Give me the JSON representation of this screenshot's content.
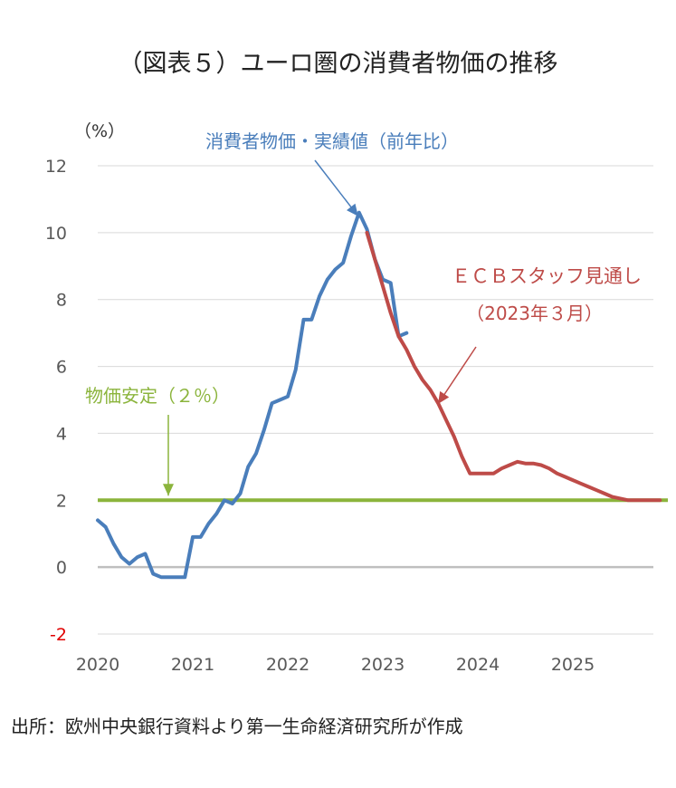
{
  "title": "（図表５）ユーロ圏の消費者物価の推移",
  "source": "出所：欧州中央銀行資料より第一生命経済研究所が作成",
  "colors": {
    "actual": "#4a7ebb",
    "forecast": "#be4b48",
    "target": "#8bb43c",
    "zero": "#bfbfbf",
    "grid": "#d9d9d9",
    "negtick": "#e00000"
  },
  "chart_data": {
    "type": "line",
    "y_unit_label": "（%）",
    "ylim": [
      -2,
      12
    ],
    "y_ticks": [
      "-2",
      "0",
      "2",
      "4",
      "6",
      "8",
      "10",
      "12"
    ],
    "y_tick_values": [
      -2,
      0,
      2,
      4,
      6,
      8,
      10,
      12
    ],
    "x_ticks": [
      "2020",
      "2021",
      "2022",
      "2023",
      "2024",
      "2025"
    ],
    "x_tick_values": [
      2020,
      2021,
      2022,
      2023,
      2024,
      2025
    ],
    "xlim": [
      2020,
      2026
    ],
    "grid": true,
    "series": [
      {
        "name": "消費者物価・実績値（前年比）",
        "x": [
          2020.0,
          2020.083,
          2020.167,
          2020.25,
          2020.333,
          2020.417,
          2020.5,
          2020.583,
          2020.667,
          2020.75,
          2020.833,
          2020.917,
          2021.0,
          2021.083,
          2021.167,
          2021.25,
          2021.333,
          2021.417,
          2021.5,
          2021.583,
          2021.667,
          2021.75,
          2021.833,
          2021.917,
          2022.0,
          2022.083,
          2022.167,
          2022.25,
          2022.333,
          2022.417,
          2022.5,
          2022.583,
          2022.667,
          2022.75,
          2022.833,
          2022.917,
          2023.0,
          2023.083,
          2023.167,
          2023.25
        ],
        "y": [
          1.4,
          1.2,
          0.7,
          0.3,
          0.1,
          0.3,
          0.4,
          -0.2,
          -0.3,
          -0.3,
          -0.3,
          -0.3,
          0.9,
          0.9,
          1.3,
          1.6,
          2.0,
          1.9,
          2.2,
          3.0,
          3.4,
          4.1,
          4.9,
          5.0,
          5.1,
          5.9,
          7.4,
          7.4,
          8.1,
          8.6,
          8.9,
          9.1,
          9.9,
          10.6,
          10.1,
          9.2,
          8.6,
          8.5,
          6.9,
          7.0
        ]
      },
      {
        "name": "ＥＣＢスタッフ見通し（2023年３月）",
        "x": [
          2022.833,
          2022.917,
          2023.0,
          2023.083,
          2023.167,
          2023.25,
          2023.333,
          2023.417,
          2023.5,
          2023.583,
          2023.667,
          2023.75,
          2023.833,
          2023.917,
          2024.0,
          2024.083,
          2024.167,
          2024.25,
          2024.333,
          2024.417,
          2024.5,
          2024.583,
          2024.667,
          2024.75,
          2024.833,
          2024.917,
          2025.0,
          2025.083,
          2025.167,
          2025.25,
          2025.333,
          2025.417,
          2025.5,
          2025.583,
          2025.667,
          2025.75,
          2025.833,
          2025.917
        ],
        "y": [
          10.0,
          9.2,
          8.4,
          7.6,
          6.9,
          6.5,
          6.0,
          5.6,
          5.3,
          4.9,
          4.4,
          3.9,
          3.3,
          2.8,
          2.8,
          2.8,
          2.8,
          2.95,
          3.05,
          3.15,
          3.1,
          3.1,
          3.05,
          2.95,
          2.8,
          2.7,
          2.6,
          2.5,
          2.4,
          2.3,
          2.2,
          2.1,
          2.05,
          2.0,
          2.0,
          2.0,
          2.0,
          2.0
        ]
      },
      {
        "name": "物価安定（２％）",
        "x": [
          2020.0,
          2026.0
        ],
        "y": [
          2.0,
          2.0
        ]
      }
    ],
    "annotations": [
      {
        "text": "消費者物価・実績値（前年比）",
        "points_to": [
          2022.75,
          10.6
        ]
      },
      {
        "text": "ＥＣＢスタッフ見通し",
        "points_to": [
          2023.75,
          4.9
        ]
      },
      {
        "text": "（2023年３月）"
      },
      {
        "text": "物価安定（２％）",
        "points_to": [
          2020.75,
          2.0
        ]
      }
    ]
  }
}
